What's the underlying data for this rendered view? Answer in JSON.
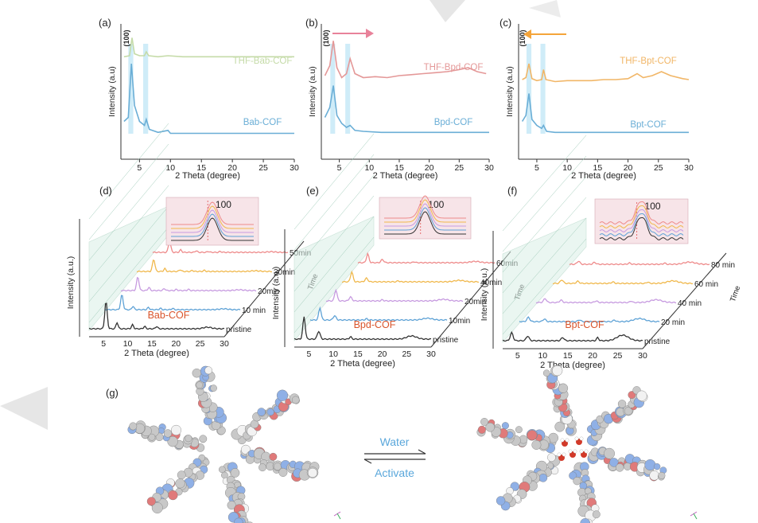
{
  "colors": {
    "bab": "#6aaed6",
    "thf_bab": "#c5dba8",
    "bpd": "#6aaed6",
    "thf_bpd": "#e49898",
    "bpt": "#6aaed6",
    "thf_bpt": "#f1b667",
    "highlight": "#bfe6f6",
    "axis": "#333333",
    "note_red": "#d9542b",
    "arrow_pink": "#e8829a",
    "arrow_orange": "#f4a43a",
    "water_blue": "#5aa7db",
    "pane_green": "#d9efe6",
    "inset_bg": "#f7e4e8"
  },
  "chart_data": [
    {
      "type": "line",
      "panel": "(a)",
      "xlabel": "2 Theta (degree)",
      "ylabel": "Intensity (a.u)",
      "xlim": [
        2,
        30
      ],
      "xticks": [
        5,
        10,
        15,
        20,
        25,
        30
      ],
      "peak_label": "(100)",
      "highlight_bands": [
        [
          3.2,
          4.0
        ],
        [
          5.6,
          6.4
        ]
      ],
      "series": [
        {
          "name": "THF-Bab-COF",
          "color": "thf_bab",
          "x": [
            2.5,
            3.4,
            3.8,
            4.2,
            5.0,
            5.8,
            6.1,
            6.5,
            8,
            9.6,
            12,
            16,
            20,
            24,
            28,
            30
          ],
          "y": [
            0.79,
            0.8,
            0.98,
            0.82,
            0.8,
            0.8,
            0.84,
            0.8,
            0.79,
            0.8,
            0.79,
            0.79,
            0.79,
            0.79,
            0.79,
            0.79
          ]
        },
        {
          "name": "Bab-COF",
          "color": "bab",
          "x": [
            2.5,
            3.2,
            3.7,
            4.2,
            5.0,
            5.8,
            6.1,
            6.6,
            8,
            9.6,
            10,
            12,
            16,
            20,
            24,
            28,
            30
          ],
          "y": [
            0.14,
            0.18,
            0.72,
            0.3,
            0.14,
            0.1,
            0.16,
            0.06,
            0.03,
            0.05,
            0.02,
            0.02,
            0.02,
            0.02,
            0.02,
            0.02,
            0.02
          ]
        }
      ]
    },
    {
      "type": "line",
      "panel": "(b)",
      "xlabel": "2 Theta (degree)",
      "ylabel": "Intensity (a.u)",
      "xlim": [
        2,
        30
      ],
      "xticks": [
        5,
        10,
        15,
        20,
        25,
        30
      ],
      "peak_label": "(100)",
      "highlight_bands": [
        [
          3.5,
          4.3
        ],
        [
          6.0,
          6.8
        ]
      ],
      "series": [
        {
          "name": "THF-Bpd-COF",
          "color": "thf_bpd",
          "x": [
            2.6,
            3.4,
            4.0,
            4.6,
            5.4,
            6.2,
            6.8,
            7.6,
            9,
            11,
            13,
            15,
            17,
            19,
            21,
            23,
            25,
            26.5,
            28,
            29.5
          ],
          "y": [
            0.6,
            0.7,
            0.95,
            0.68,
            0.58,
            0.62,
            0.77,
            0.62,
            0.58,
            0.59,
            0.58,
            0.6,
            0.61,
            0.62,
            0.63,
            0.64,
            0.66,
            0.68,
            0.64,
            0.62
          ]
        },
        {
          "name": "Bpd-COF",
          "color": "bpd",
          "x": [
            2.6,
            3.4,
            4.0,
            4.6,
            5.4,
            6.2,
            6.8,
            7.6,
            9,
            12,
            16,
            20,
            24,
            28,
            30
          ],
          "y": [
            0.18,
            0.28,
            0.5,
            0.2,
            0.12,
            0.08,
            0.1,
            0.05,
            0.04,
            0.03,
            0.03,
            0.03,
            0.03,
            0.03,
            0.03
          ]
        }
      ]
    },
    {
      "type": "line",
      "panel": "(c)",
      "xlabel": "2 Theta (degree)",
      "ylabel": "Intensity (a.u)",
      "xlim": [
        2,
        30
      ],
      "xticks": [
        5,
        10,
        15,
        20,
        25,
        30
      ],
      "peak_label": "(100)",
      "highlight_bands": [
        [
          3.3,
          4.1
        ],
        [
          5.6,
          6.4
        ]
      ],
      "series": [
        {
          "name": "THF-Bpt-COF",
          "color": "thf_bpt",
          "x": [
            2.6,
            3.2,
            3.7,
            4.2,
            5.0,
            5.8,
            6.1,
            6.5,
            8,
            10,
            12,
            14,
            16,
            18,
            20,
            21.5,
            22.5,
            24,
            25.5,
            27,
            29,
            30
          ],
          "y": [
            0.56,
            0.58,
            0.72,
            0.57,
            0.55,
            0.56,
            0.66,
            0.56,
            0.54,
            0.55,
            0.55,
            0.55,
            0.56,
            0.56,
            0.57,
            0.62,
            0.58,
            0.6,
            0.64,
            0.6,
            0.57,
            0.56
          ]
        },
        {
          "name": "Bpt-COF",
          "color": "bpt",
          "x": [
            2.6,
            3.2,
            3.7,
            4.2,
            5.0,
            5.8,
            6.1,
            6.6,
            8,
            12,
            16,
            20,
            24,
            28,
            30
          ],
          "y": [
            0.14,
            0.2,
            0.42,
            0.16,
            0.1,
            0.07,
            0.1,
            0.04,
            0.03,
            0.03,
            0.03,
            0.03,
            0.03,
            0.03,
            0.03
          ]
        }
      ]
    },
    {
      "type": "waterfall",
      "panel": "(d)",
      "name": "Bab-COF",
      "xlabel": "2 Theta (degree)",
      "ylabel": "Intensity (a.u.)",
      "zlabel": "Time",
      "xlim": [
        2,
        30
      ],
      "xticks": [
        5,
        10,
        15,
        20,
        25,
        30
      ],
      "inset_label": "100",
      "times": [
        "pristine",
        "10 min",
        "20min",
        "30min",
        "50min"
      ],
      "colors": [
        "#333333",
        "#5ea2d6",
        "#c79be0",
        "#f0b84c",
        "#ee8a8a"
      ]
    },
    {
      "type": "waterfall",
      "panel": "(e)",
      "name": "Bpd-COF",
      "xlabel": "2 Theta (degree)",
      "ylabel": "Intensity (a.u.)",
      "zlabel": "Time",
      "xlim": [
        2,
        30
      ],
      "xticks": [
        5,
        10,
        15,
        20,
        25,
        30
      ],
      "inset_label": "100",
      "times": [
        "pristine",
        "10min",
        "20min",
        "40min",
        "60min"
      ],
      "colors": [
        "#333333",
        "#5ea2d6",
        "#c79be0",
        "#f0b84c",
        "#ee8a8a"
      ]
    },
    {
      "type": "waterfall",
      "panel": "(f)",
      "name": "Bpt-COF",
      "xlabel": "2 Theta (degree)",
      "ylabel": "Intensity (a.u.)",
      "zlabel": "Time",
      "xlim": [
        2,
        30
      ],
      "xticks": [
        5,
        10,
        15,
        20,
        25,
        30
      ],
      "inset_label": "100",
      "times": [
        "pristine",
        "20 min",
        "40 min",
        "60 min",
        "80 min"
      ],
      "colors": [
        "#333333",
        "#5ea2d6",
        "#c79be0",
        "#f0b84c",
        "#ee8a8a"
      ]
    }
  ],
  "panel_g": {
    "label": "(g)",
    "forward": "Water",
    "reverse": "Activate"
  }
}
